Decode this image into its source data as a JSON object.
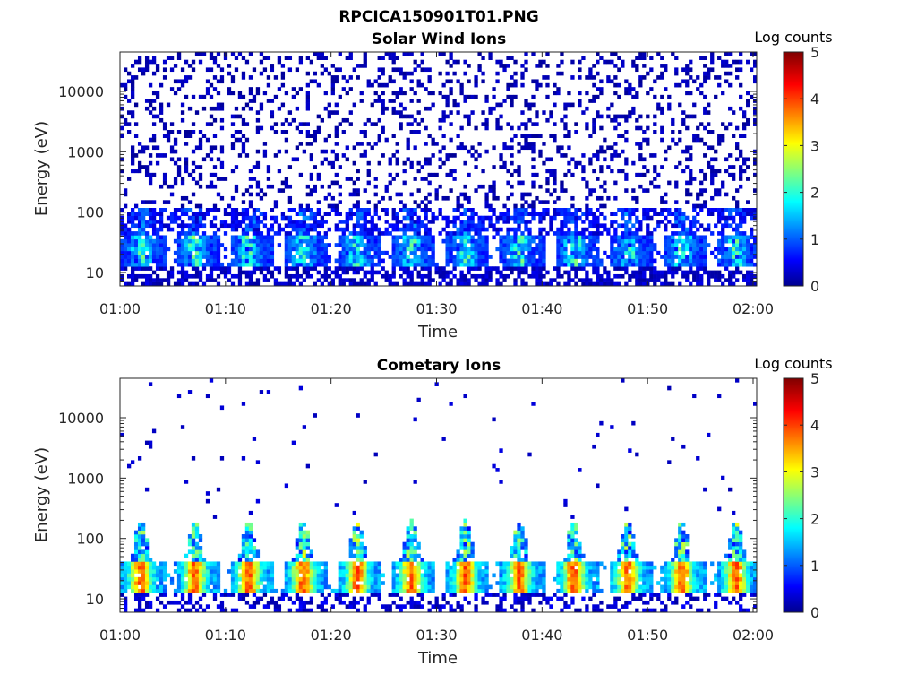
{
  "figure_title": "RPCICA150901T01.PNG",
  "chart_data": [
    {
      "type": "heatmap",
      "title": "Solar Wind Ions",
      "xlabel": "Time",
      "ylabel": "Energy (eV)",
      "x_ticks": [
        "01:00",
        "01:10",
        "01:20",
        "01:30",
        "01:40",
        "01:50",
        "02:00"
      ],
      "x_range": [
        "01:00",
        "02:00"
      ],
      "y_scale": "log",
      "y_ticks": [
        "10",
        "100",
        "1000",
        "10000"
      ],
      "y_range": [
        6,
        45000
      ],
      "colorbar": {
        "label": "Log counts",
        "ticks": [
          "0",
          "1",
          "2",
          "3",
          "4",
          "5"
        ],
        "range": [
          0,
          5
        ],
        "colormap": "jet"
      },
      "description_levels": {
        "background_log_counts": 0.2,
        "core_energy_range_eV": [
          10,
          100
        ],
        "peak_log_counts": 2.8
      }
    },
    {
      "type": "heatmap",
      "title": "Cometary Ions",
      "xlabel": "Time",
      "ylabel": "Energy (eV)",
      "x_ticks": [
        "01:00",
        "01:10",
        "01:20",
        "01:30",
        "01:40",
        "01:50",
        "02:00"
      ],
      "x_range": [
        "01:00",
        "02:00"
      ],
      "y_scale": "log",
      "y_ticks": [
        "10",
        "100",
        "1000",
        "10000"
      ],
      "y_range": [
        6,
        45000
      ],
      "colorbar": {
        "label": "Log counts",
        "ticks": [
          "0",
          "1",
          "2",
          "3",
          "4",
          "5"
        ],
        "range": [
          0,
          5
        ],
        "colormap": "jet"
      },
      "description_levels": {
        "background_log_counts": 0.1,
        "core_energy_range_eV": [
          15,
          60
        ],
        "peak_log_counts": 4.0
      }
    }
  ]
}
